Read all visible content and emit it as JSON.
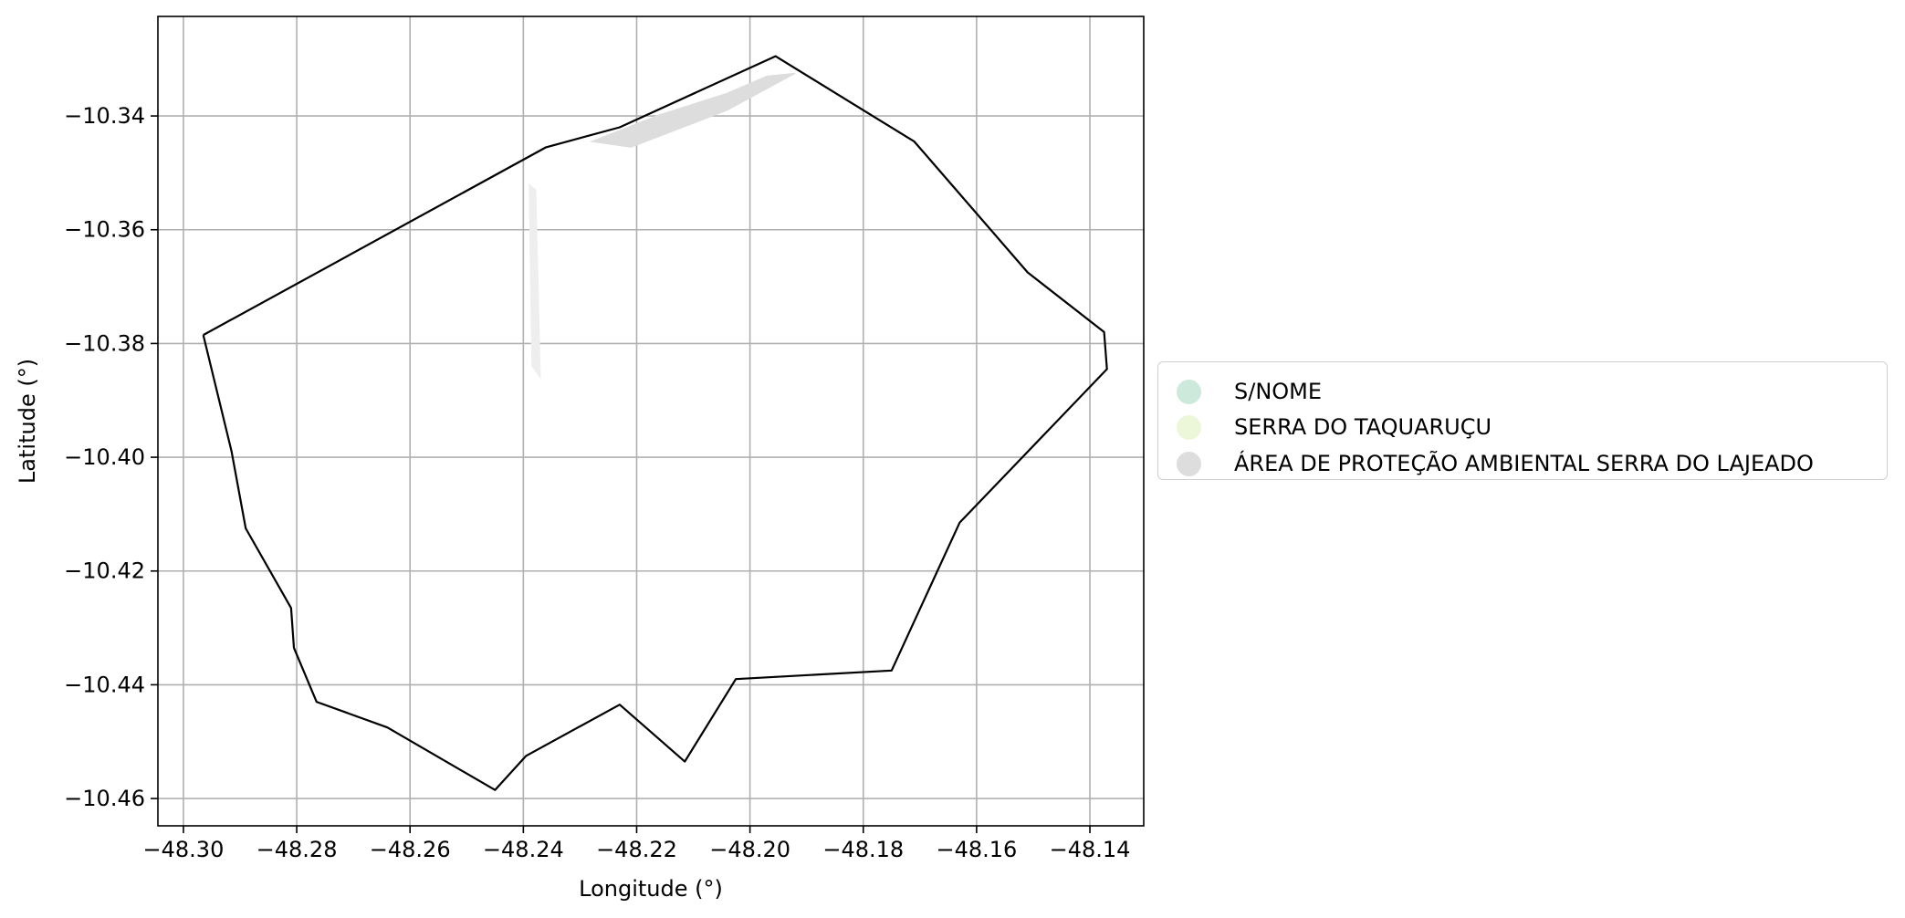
{
  "chart_data": {
    "type": "map",
    "xlabel": "Longitude (°)",
    "ylabel": "Latitude (°)",
    "xlim": [
      -48.3045,
      -48.1305
    ],
    "ylim": [
      -10.4648,
      -10.3225
    ],
    "grid": true,
    "x_ticks": [
      -48.3,
      -48.28,
      -48.26,
      -48.24,
      -48.22,
      -48.2,
      -48.18,
      -48.16,
      -48.14
    ],
    "x_tick_labels": [
      "−48.30",
      "−48.28",
      "−48.26",
      "−48.24",
      "−48.22",
      "−48.20",
      "−48.18",
      "−48.16",
      "−48.14"
    ],
    "y_ticks": [
      -10.34,
      -10.36,
      -10.38,
      -10.4,
      -10.42,
      -10.44,
      -10.46
    ],
    "y_tick_labels": [
      "−10.34",
      "−10.36",
      "−10.38",
      "−10.40",
      "−10.42",
      "−10.44",
      "−10.46"
    ],
    "boundary": {
      "color": "#000000",
      "coords": [
        [
          -48.2965,
          -10.3785
        ],
        [
          -48.236,
          -10.3455
        ],
        [
          -48.223,
          -10.342
        ],
        [
          -48.1955,
          -10.3295
        ],
        [
          -48.171,
          -10.3445
        ],
        [
          -48.1675,
          -10.3485
        ],
        [
          -48.151,
          -10.3675
        ],
        [
          -48.1375,
          -10.378
        ],
        [
          -48.137,
          -10.3845
        ],
        [
          -48.163,
          -10.4115
        ],
        [
          -48.175,
          -10.4375
        ],
        [
          -48.2025,
          -10.439
        ],
        [
          -48.2115,
          -10.4535
        ],
        [
          -48.223,
          -10.4435
        ],
        [
          -48.2395,
          -10.4525
        ],
        [
          -48.245,
          -10.4585
        ],
        [
          -48.264,
          -10.4475
        ],
        [
          -48.2765,
          -10.443
        ],
        [
          -48.2805,
          -10.4335
        ],
        [
          -48.281,
          -10.4265
        ],
        [
          -48.289,
          -10.4125
        ],
        [
          -48.2915,
          -10.399
        ],
        [
          -48.2965,
          -10.3785
        ]
      ]
    },
    "features": [
      {
        "name": "ÁREA DE PROTEÇÃO AMBIENTAL SERRA DO LAJEADO",
        "color": "#dddddd",
        "coords": [
          [
            -48.228,
            -10.3445
          ],
          [
            -48.216,
            -10.3398
          ],
          [
            -48.204,
            -10.336
          ],
          [
            -48.197,
            -10.333
          ],
          [
            -48.192,
            -10.3325
          ],
          [
            -48.204,
            -10.339
          ],
          [
            -48.221,
            -10.3455
          ]
        ]
      },
      {
        "name": "ÁREA DE PROTEÇÃO AMBIENTAL SERRA DO LAJEADO",
        "color": "#eeeeee",
        "coords": [
          [
            -48.239,
            -10.352
          ],
          [
            -48.2385,
            -10.384
          ],
          [
            -48.237,
            -10.386
          ],
          [
            -48.2378,
            -10.353
          ]
        ]
      }
    ],
    "legend": {
      "position": "center-right",
      "entries": [
        {
          "label": "S/NOME",
          "color": "#cde9dc"
        },
        {
          "label": "SERRA DO TAQUARUÇU",
          "color": "#ecf7d9"
        },
        {
          "label": "ÁREA DE PROTEÇÃO AMBIENTAL SERRA DO LAJEADO",
          "color": "#dddddd"
        }
      ]
    }
  }
}
